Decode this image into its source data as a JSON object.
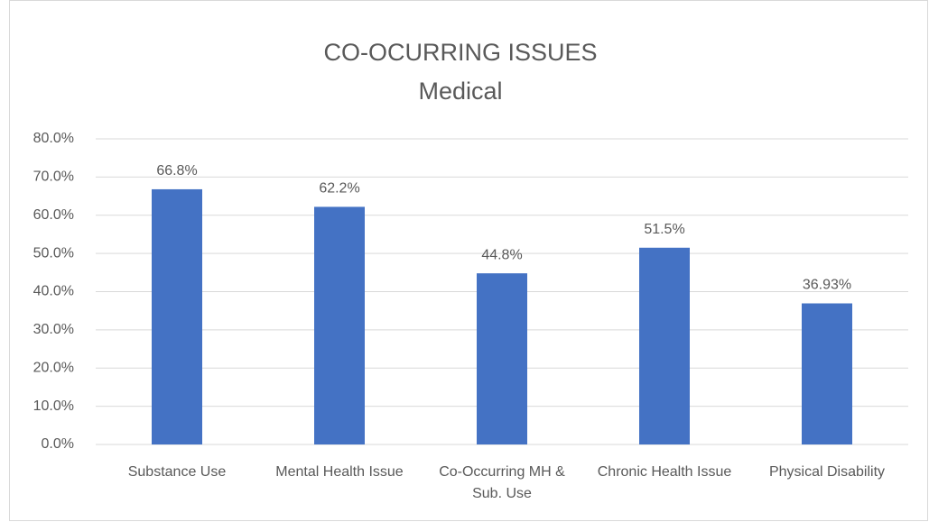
{
  "chart_data": {
    "type": "bar",
    "title": "CO-OCURRING ISSUES",
    "subtitle": "Medical",
    "categories": [
      "Substance Use",
      "Mental Health Issue",
      "Co-Occurring MH & Sub. Use",
      "Chronic Health Issue",
      "Physical Disability"
    ],
    "values": [
      66.8,
      62.2,
      44.8,
      51.5,
      36.93
    ],
    "value_labels": [
      "66.8%",
      "62.2%",
      "44.8%",
      "51.5%",
      "36.93%"
    ],
    "color": "#4472c4",
    "ylim": [
      0,
      80
    ],
    "yticks": [
      {
        "value": 0,
        "label": "0.0%"
      },
      {
        "value": 10,
        "label": "10.0%"
      },
      {
        "value": 20,
        "label": "20.0%"
      },
      {
        "value": 30,
        "label": "30.0%"
      },
      {
        "value": 40,
        "label": "40.0%"
      },
      {
        "value": 50,
        "label": "50.0%"
      },
      {
        "value": 60,
        "label": "60.0%"
      },
      {
        "value": 70,
        "label": "70.0%"
      },
      {
        "value": 80,
        "label": "80.0%"
      }
    ],
    "grid": true
  }
}
